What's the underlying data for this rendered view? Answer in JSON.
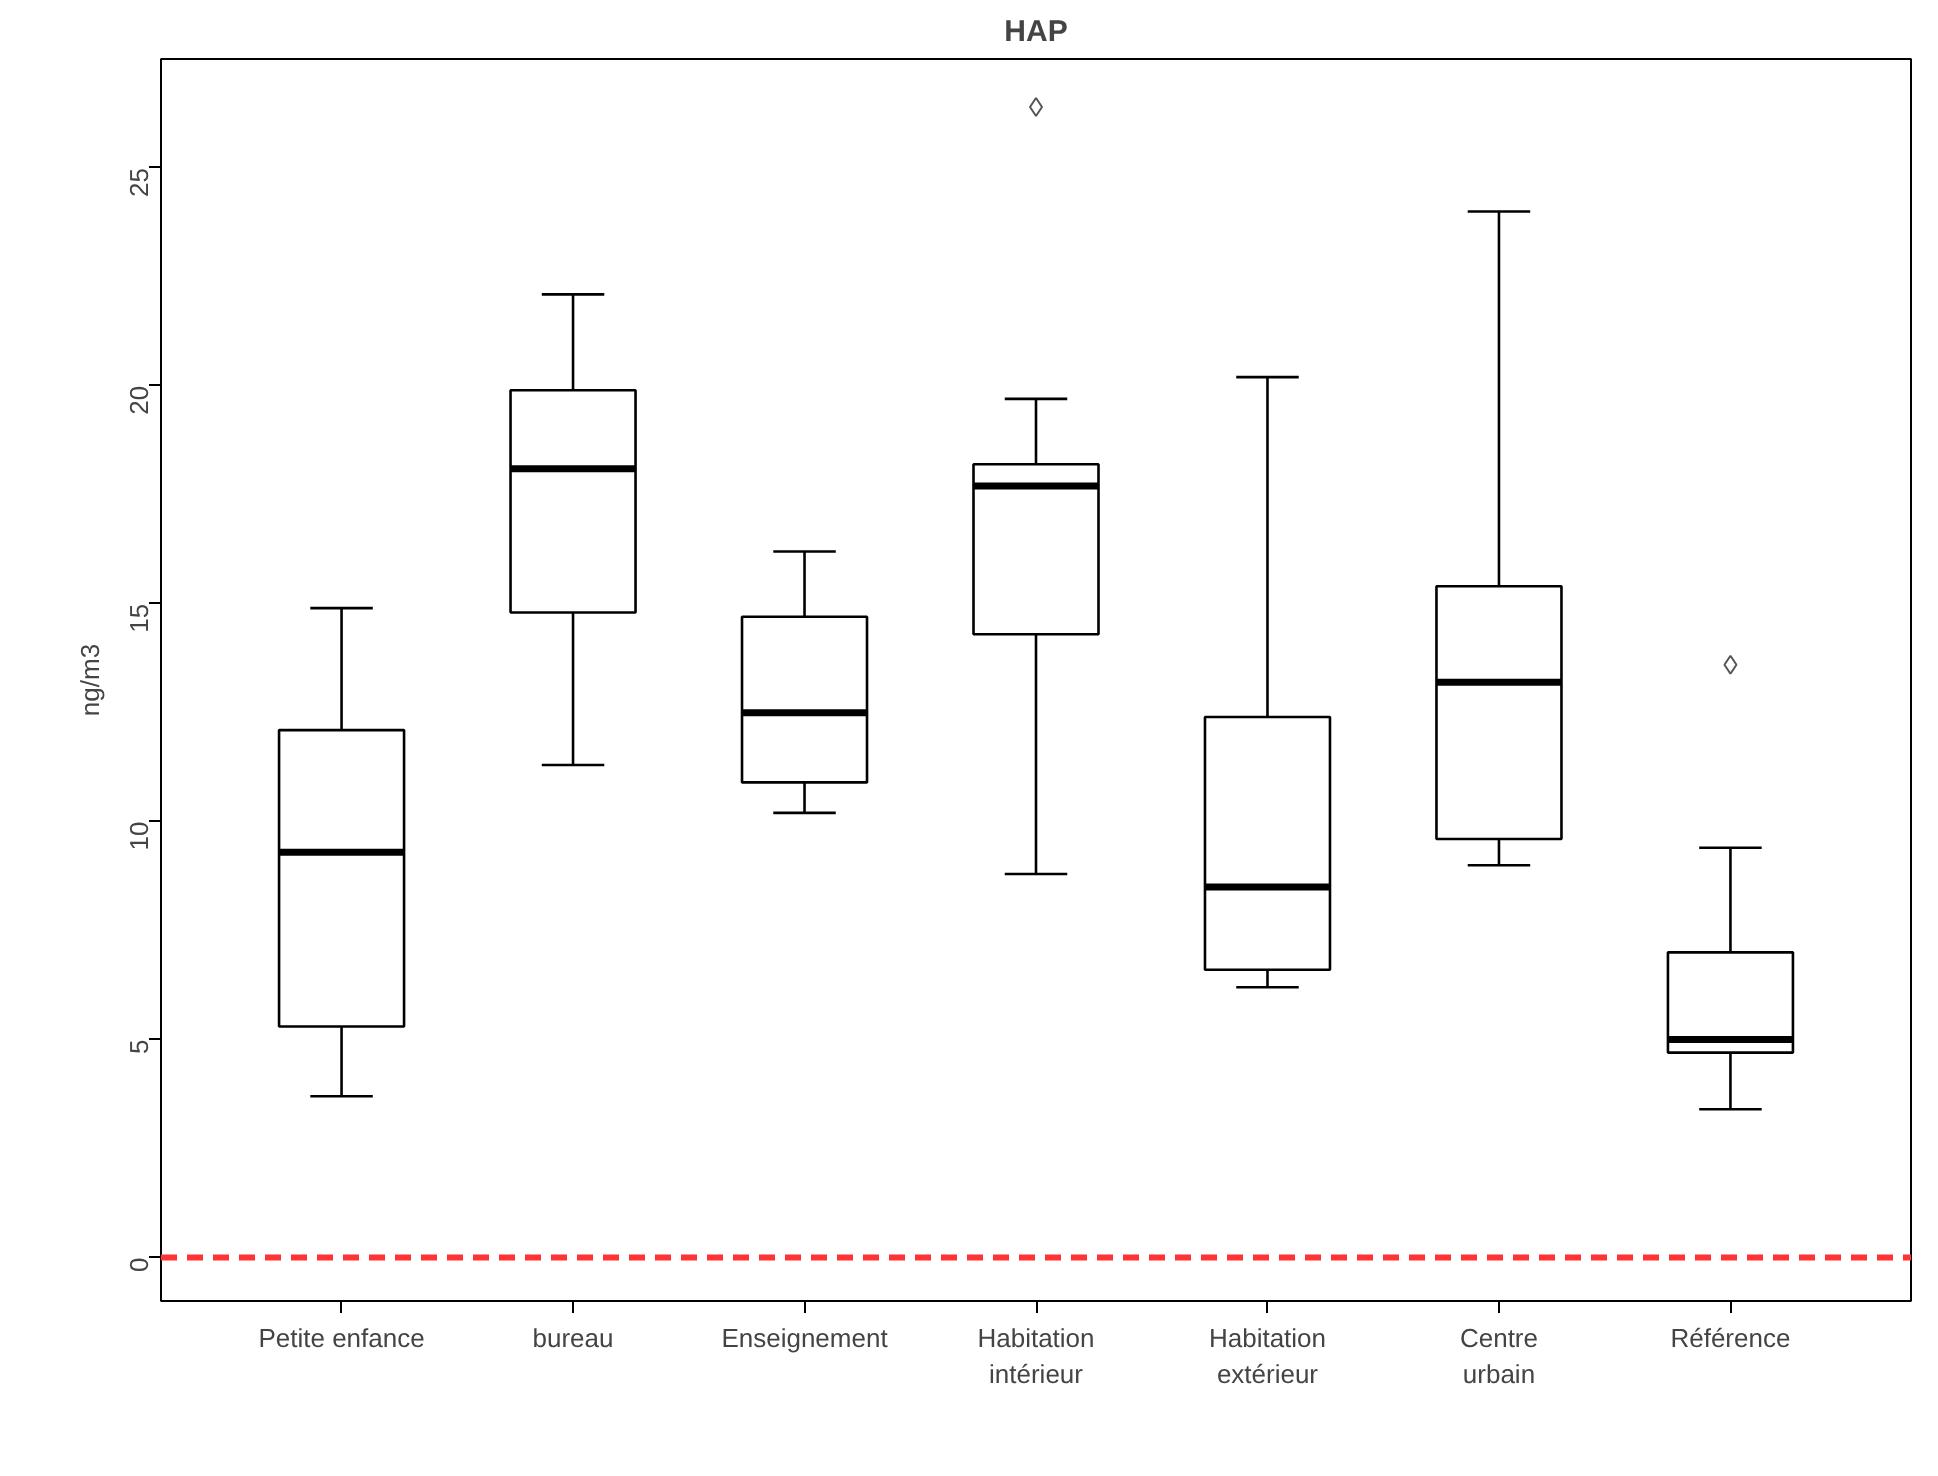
{
  "chart_data": {
    "type": "box",
    "title": "HAP",
    "ylabel": "ng/m3",
    "categories": [
      "Petite enfance",
      "bureau",
      "Enseignement",
      "Habitation\nintérieur",
      "Habitation\nextérieur",
      "Centre\nurbain",
      "Référence"
    ],
    "boxes": [
      {
        "low": 3.7,
        "q1": 5.3,
        "median": 9.3,
        "q3": 12.1,
        "high": 14.9
      },
      {
        "low": 11.3,
        "q1": 14.8,
        "median": 18.1,
        "q3": 19.9,
        "high": 22.1
      },
      {
        "low": 10.2,
        "q1": 10.9,
        "median": 12.5,
        "q3": 14.7,
        "high": 16.2
      },
      {
        "low": 8.8,
        "q1": 14.3,
        "median": 17.7,
        "q3": 18.2,
        "high": 19.7,
        "outliers": [
          26.4
        ]
      },
      {
        "low": 6.2,
        "q1": 6.6,
        "median": 8.5,
        "q3": 12.4,
        "high": 20.2
      },
      {
        "low": 9.0,
        "q1": 9.6,
        "median": 13.2,
        "q3": 15.4,
        "high": 24.0
      },
      {
        "low": 3.4,
        "q1": 4.7,
        "median": 5.0,
        "q3": 7.0,
        "high": 9.4,
        "outliers": [
          13.6
        ]
      }
    ],
    "ylim": [
      -1,
      27.5
    ],
    "yticks": [
      0,
      5,
      10,
      15,
      20,
      25
    ],
    "grid": false,
    "ref_lines": [
      {
        "axis": "y",
        "value": 0,
        "color": "#ff3333",
        "line_style": "dashed"
      }
    ]
  }
}
